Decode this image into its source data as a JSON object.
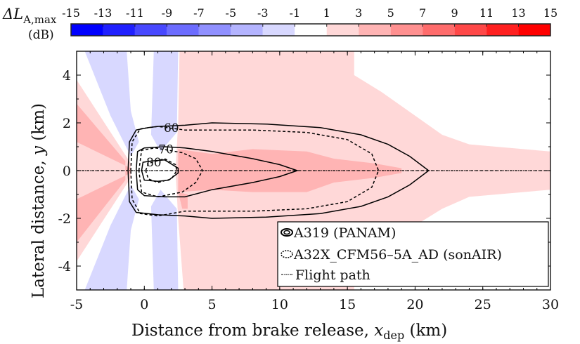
{
  "chart_data": {
    "type": "heatmap",
    "colorbar": {
      "label_main": "ΔL",
      "label_sub": "A,max",
      "label_unit": "(dB)",
      "ticks": [
        "-15",
        "-13",
        "-11",
        "-9",
        "-7",
        "-5",
        "-3",
        "-1",
        "1",
        "3",
        "5",
        "7",
        "9",
        "11",
        "13",
        "15"
      ],
      "colors": [
        "#0000ff",
        "#2020ff",
        "#4848ff",
        "#6c6cff",
        "#9090ff",
        "#b4b4ff",
        "#d8d8ff",
        "#ffffff",
        "#ffd8d8",
        "#ffb4b4",
        "#ff9090",
        "#ff6c6c",
        "#ff4848",
        "#ff2020",
        "#ff0000"
      ]
    },
    "xlabel": "Distance from brake release, ",
    "xlabel_var": "x",
    "xlabel_sub": "dep",
    "xlabel_unit": " (km)",
    "ylabel": "Lateral distance, ",
    "ylabel_var": "y",
    "ylabel_unit": " (km)",
    "xlim": [
      -5,
      30
    ],
    "ylim": [
      -5,
      5
    ],
    "xticks": [
      "-5",
      "0",
      "5",
      "10",
      "15",
      "20",
      "25",
      "30"
    ],
    "yticks": [
      "-4",
      "-2",
      "0",
      "2",
      "4"
    ],
    "regions": [
      {
        "level": "-3..-1",
        "color": "#d8d8ff",
        "points": [
          [
            -4.4,
            5
          ],
          [
            -1.3,
            5
          ],
          [
            -1,
            2.5
          ],
          [
            -0.4,
            1.2
          ],
          [
            -1,
            0.6
          ],
          [
            -2.5,
            2.3
          ]
        ]
      },
      {
        "level": "-3..-1",
        "color": "#d8d8ff",
        "points": [
          [
            0.7,
            5
          ],
          [
            2.5,
            5
          ],
          [
            2.4,
            1.6
          ],
          [
            1.2,
            0.8
          ],
          [
            0.5,
            1.5
          ]
        ]
      },
      {
        "level": "-3..-1",
        "color": "#d8d8ff",
        "points": [
          [
            -4.4,
            -5
          ],
          [
            -1.3,
            -5
          ],
          [
            -1,
            -2.5
          ],
          [
            -0.4,
            -1.2
          ],
          [
            -1,
            -0.6
          ],
          [
            -2.5,
            -2.3
          ]
        ]
      },
      {
        "level": "-3..-1",
        "color": "#d8d8ff",
        "points": [
          [
            0.7,
            -5
          ],
          [
            2.5,
            -5
          ],
          [
            2.4,
            -1.6
          ],
          [
            1.2,
            -0.8
          ],
          [
            0.5,
            -1.5
          ]
        ]
      },
      {
        "level": "1..3",
        "color": "#ffd8d8",
        "points": [
          [
            -5,
            3.8
          ],
          [
            -1,
            0.3
          ],
          [
            -1,
            -0.3
          ],
          [
            -5,
            -3.8
          ]
        ]
      },
      {
        "level": "1..3",
        "color": "#ffd8d8",
        "points": [
          [
            2.6,
            5
          ],
          [
            15.5,
            5
          ],
          [
            15.5,
            4
          ],
          [
            17.5,
            3.3
          ],
          [
            20,
            2.3
          ],
          [
            22,
            1.5
          ],
          [
            24,
            1.1
          ],
          [
            30,
            0.8
          ],
          [
            30,
            -0.8
          ],
          [
            24,
            -1.1
          ],
          [
            22,
            -1.6
          ],
          [
            20,
            -2.3
          ],
          [
            17,
            -3.2
          ],
          [
            15.5,
            -4
          ],
          [
            15.5,
            -5
          ],
          [
            2.9,
            -5
          ],
          [
            2.5,
            -2
          ],
          [
            2.3,
            0
          ],
          [
            2.5,
            2
          ]
        ]
      },
      {
        "level": "3..5",
        "color": "#ffb4b4",
        "points": [
          [
            -5,
            2.8
          ],
          [
            -5,
            1.2
          ],
          [
            -1,
            0.1
          ],
          [
            -1,
            -0.1
          ],
          [
            -5,
            -1.2
          ],
          [
            -5,
            -3
          ],
          [
            -1.4,
            -0.4
          ],
          [
            -1.4,
            0.4
          ]
        ]
      },
      {
        "level": "3..5",
        "color": "#ffb4b4",
        "points": [
          [
            2.5,
            0.9
          ],
          [
            5,
            0.7
          ],
          [
            8,
            0.9
          ],
          [
            12,
            0.8
          ],
          [
            14,
            0.5
          ],
          [
            17,
            0.3
          ],
          [
            19,
            0.1
          ],
          [
            19,
            -0.1
          ],
          [
            17,
            -0.3
          ],
          [
            14,
            -0.5
          ],
          [
            12,
            -0.9
          ],
          [
            8,
            -0.9
          ],
          [
            5,
            -0.8
          ],
          [
            2.5,
            -0.9
          ],
          [
            2.8,
            -1.6
          ],
          [
            3.2,
            -1.6
          ],
          [
            3.2,
            -1
          ],
          [
            2.5,
            -0.9
          ]
        ]
      }
    ],
    "contours": [
      {
        "series": "A319 (PANAM)",
        "level": "60",
        "style": "solid",
        "points": [
          [
            -1.2,
            0
          ],
          [
            -1.1,
            1.2
          ],
          [
            -0.6,
            1.7
          ],
          [
            0.3,
            1.8
          ],
          [
            1,
            1.85
          ],
          [
            3,
            1.9
          ],
          [
            5,
            2
          ],
          [
            9,
            1.95
          ],
          [
            13,
            1.8
          ],
          [
            16,
            1.5
          ],
          [
            18,
            1.1
          ],
          [
            19.6,
            0.6
          ],
          [
            21,
            0
          ],
          [
            19.6,
            -0.6
          ],
          [
            18,
            -1.1
          ],
          [
            16,
            -1.5
          ],
          [
            13,
            -1.8
          ],
          [
            9,
            -1.95
          ],
          [
            5,
            -2
          ],
          [
            3,
            -1.9
          ],
          [
            1,
            -1.85
          ],
          [
            -0.6,
            -1.75
          ],
          [
            -1.1,
            -1.3
          ],
          [
            -1.2,
            0
          ]
        ]
      },
      {
        "series": "A32X_CFM56-5A_AD (sonAIR)",
        "level": "60",
        "style": "dashed",
        "points": [
          [
            -1,
            0
          ],
          [
            -0.9,
            1.2
          ],
          [
            -0.3,
            1.75
          ],
          [
            1,
            1.85
          ],
          [
            3,
            1.7
          ],
          [
            8,
            1.7
          ],
          [
            12,
            1.6
          ],
          [
            15,
            1.3
          ],
          [
            16.8,
            0.7
          ],
          [
            17.3,
            0
          ],
          [
            16.8,
            -0.7
          ],
          [
            15,
            -1.3
          ],
          [
            12,
            -1.6
          ],
          [
            8,
            -1.7
          ],
          [
            3,
            -1.7
          ],
          [
            1,
            -1.9
          ],
          [
            -0.3,
            -1.8
          ],
          [
            -0.9,
            -1.2
          ],
          [
            -1,
            0
          ]
        ]
      },
      {
        "series": "A319 (PANAM)",
        "level": "70",
        "style": "solid",
        "points": [
          [
            -0.6,
            0
          ],
          [
            -0.5,
            0.8
          ],
          [
            0,
            0.95
          ],
          [
            1.5,
            1
          ],
          [
            3,
            0.95
          ],
          [
            5,
            0.8
          ],
          [
            8,
            0.5
          ],
          [
            10,
            0.25
          ],
          [
            11.3,
            0
          ],
          [
            10,
            -0.25
          ],
          [
            8,
            -0.5
          ],
          [
            5,
            -0.8
          ],
          [
            3,
            -1.1
          ],
          [
            1.5,
            -1.1
          ],
          [
            0,
            -1.05
          ],
          [
            -0.5,
            -0.8
          ],
          [
            -0.6,
            0
          ]
        ]
      },
      {
        "series": "A32X_CFM56-5A_AD (sonAIR)",
        "level": "70",
        "style": "dashed",
        "points": [
          [
            -0.4,
            0
          ],
          [
            -0.2,
            0.85
          ],
          [
            0.8,
            0.95
          ],
          [
            2.8,
            0.75
          ],
          [
            3.8,
            0.5
          ],
          [
            4.3,
            0
          ],
          [
            3.8,
            -0.5
          ],
          [
            2.8,
            -0.9
          ],
          [
            1,
            -1.1
          ],
          [
            -0.2,
            -0.9
          ],
          [
            -0.4,
            0
          ]
        ]
      },
      {
        "series": "A319 (PANAM)",
        "level": "80",
        "style": "solid",
        "points": [
          [
            -0.2,
            0
          ],
          [
            -0.1,
            0.35
          ],
          [
            0.5,
            0.4
          ],
          [
            1.5,
            0.45
          ],
          [
            2.5,
            0.1
          ],
          [
            2.5,
            -0.1
          ],
          [
            1.8,
            -0.4
          ],
          [
            1,
            -0.45
          ],
          [
            0,
            -0.4
          ],
          [
            -0.2,
            0
          ]
        ]
      },
      {
        "series": "A32X_CFM56-5A_AD (sonAIR)",
        "level": "80",
        "style": "dashed",
        "points": [
          [
            0.1,
            0
          ],
          [
            0.3,
            0.3
          ],
          [
            1.5,
            0.5
          ],
          [
            2.3,
            0.25
          ],
          [
            2.4,
            0
          ],
          [
            2,
            -0.35
          ],
          [
            1,
            -0.5
          ],
          [
            0.3,
            -0.35
          ],
          [
            0.1,
            0
          ]
        ]
      }
    ],
    "contour_labels": [
      {
        "text": "60",
        "x": 2,
        "y": 1.8
      },
      {
        "text": "70",
        "x": 1.6,
        "y": 0.9
      },
      {
        "text": "80",
        "x": 0.7,
        "y": 0.35
      }
    ],
    "legend": {
      "placement": "bottom-right",
      "entries": [
        "A319 (PANAM)",
        "A32X_CFM56–5A_AD (sonAIR)",
        "Flight path"
      ]
    }
  }
}
